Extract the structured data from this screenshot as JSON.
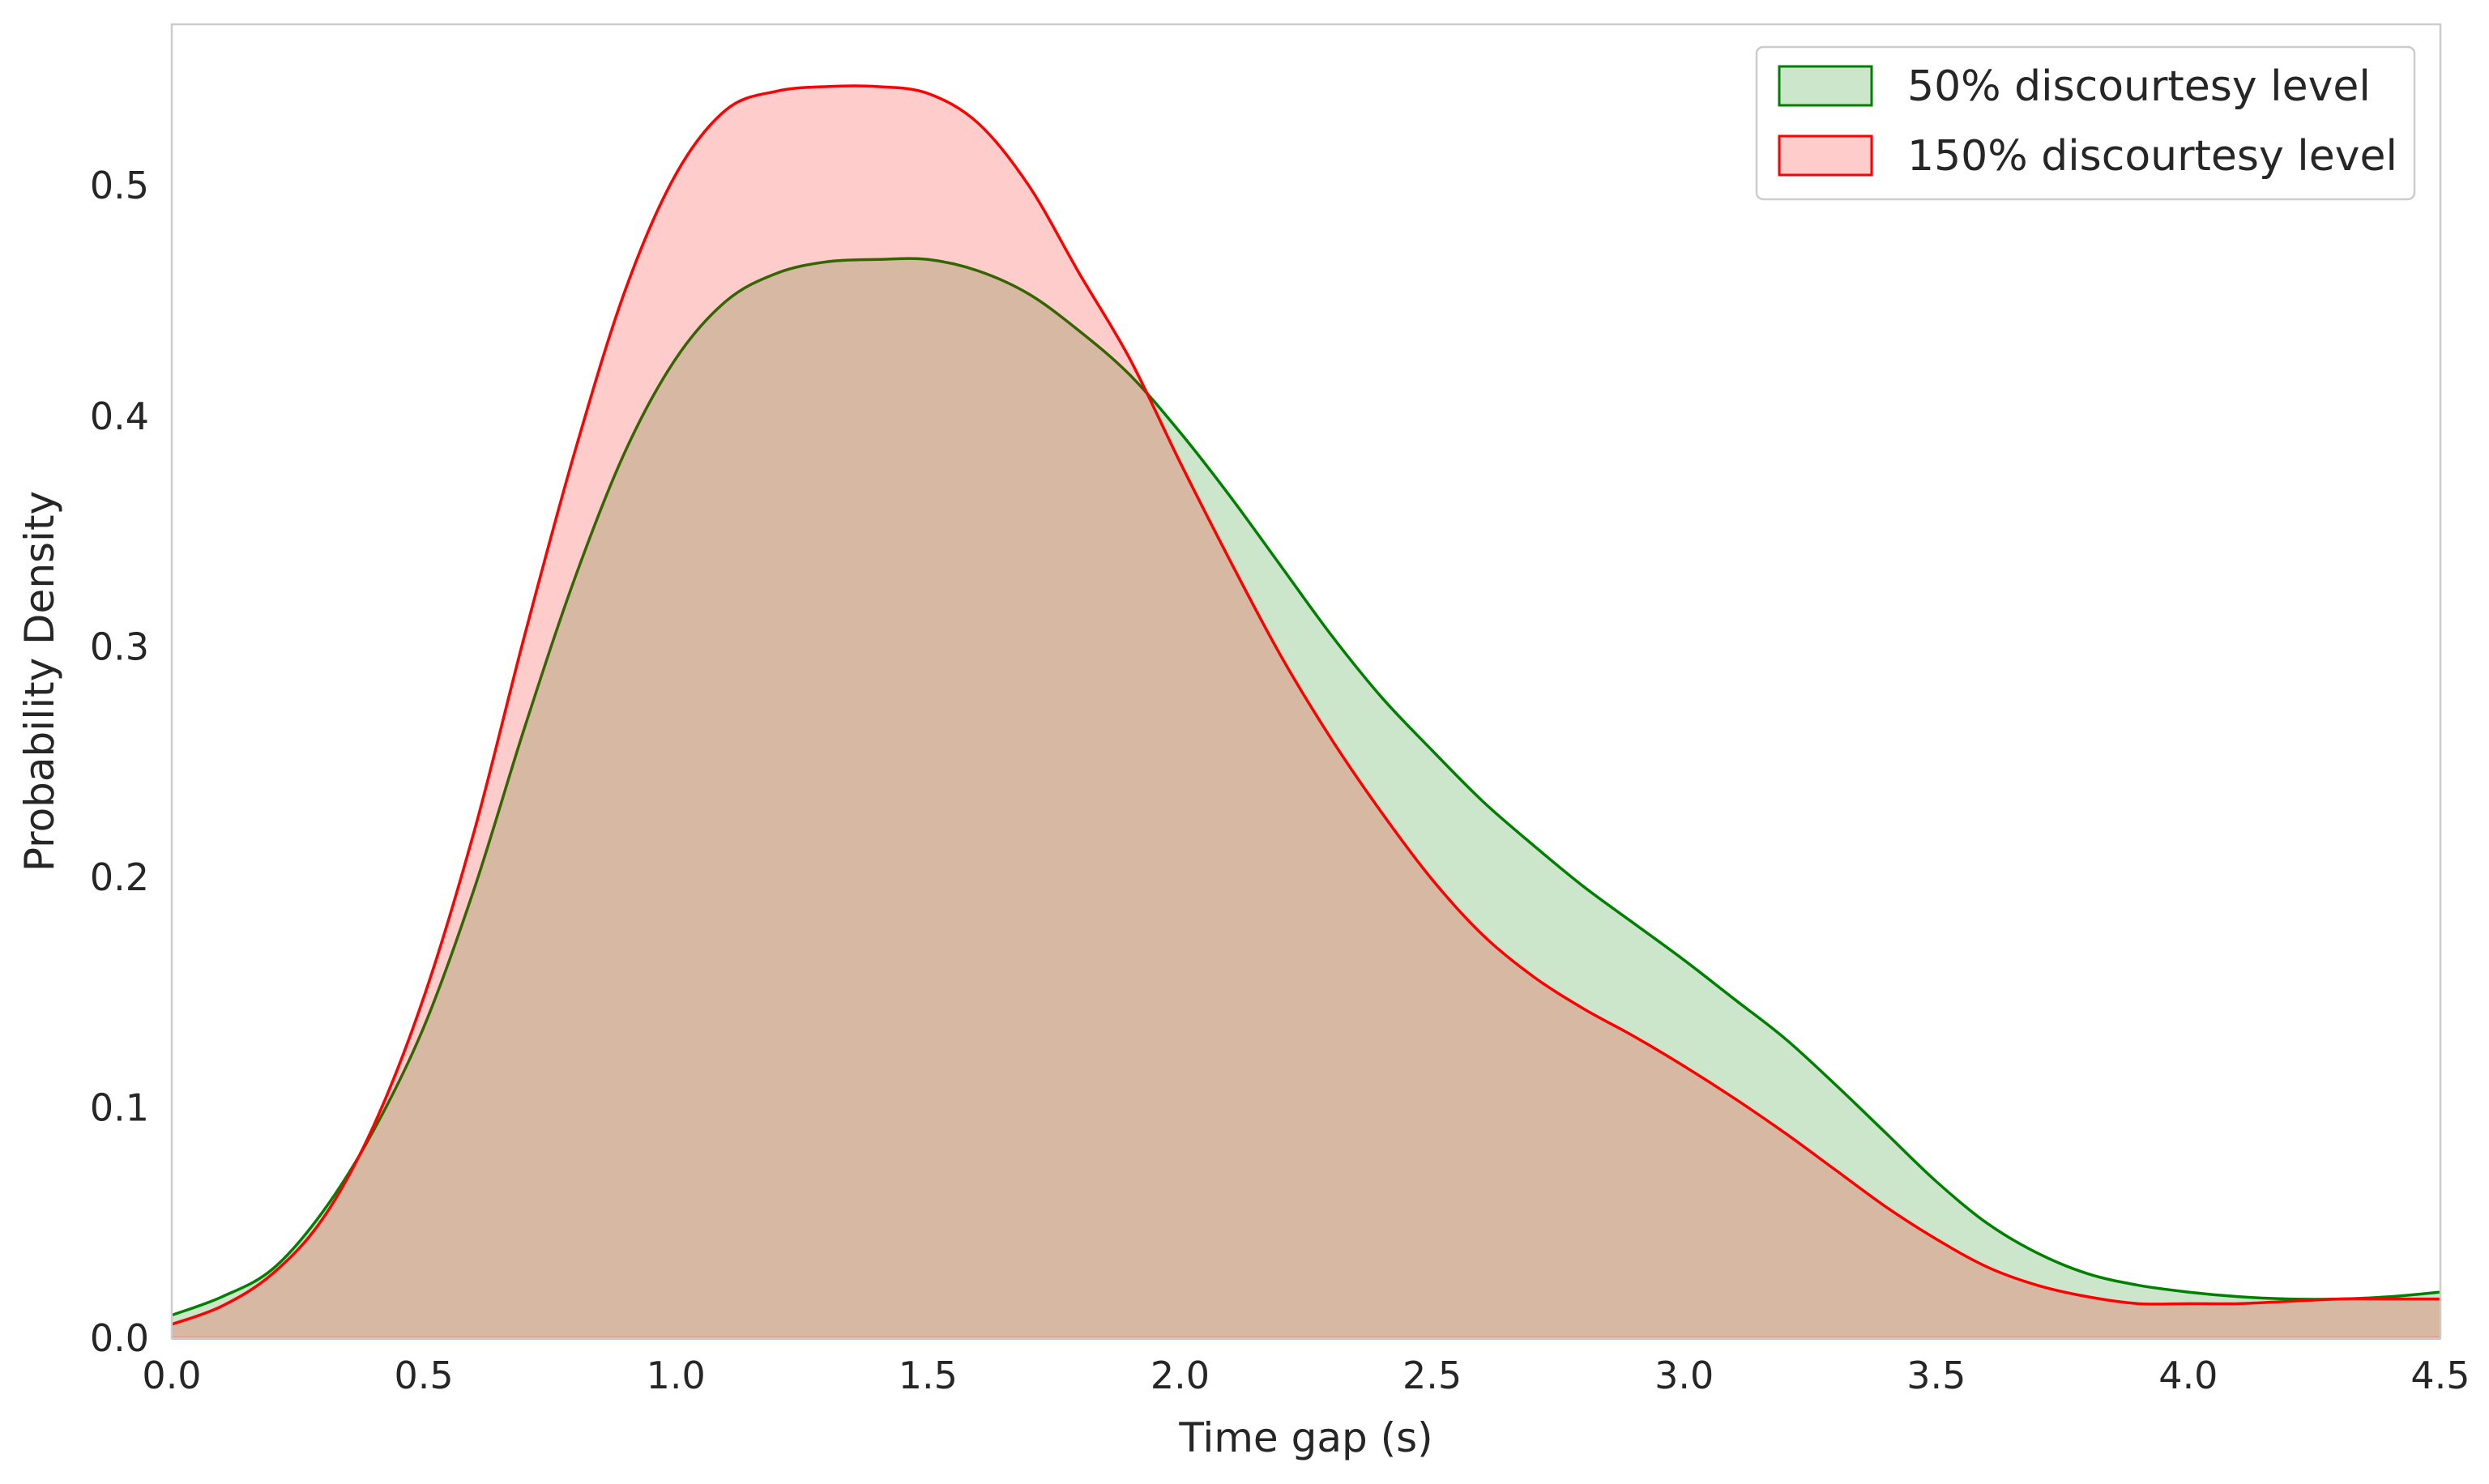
{
  "chart_data": {
    "type": "area",
    "title": "",
    "xlabel": "Time gap (s)",
    "ylabel": "Probability Density",
    "xlim": [
      0.0,
      4.5
    ],
    "ylim": [
      0.0,
      0.57
    ],
    "xticks": [
      "0.0",
      "0.5",
      "1.0",
      "1.5",
      "2.0",
      "2.5",
      "3.0",
      "3.5",
      "4.0",
      "4.5"
    ],
    "yticks": [
      "0.0",
      "0.1",
      "0.2",
      "0.3",
      "0.4",
      "0.5"
    ],
    "grid": false,
    "legend_position": "top-right",
    "x": [
      0.0,
      0.1,
      0.2,
      0.3,
      0.4,
      0.5,
      0.6,
      0.7,
      0.8,
      0.9,
      1.0,
      1.1,
      1.2,
      1.3,
      1.4,
      1.5,
      1.6,
      1.7,
      1.8,
      1.9,
      2.0,
      2.1,
      2.2,
      2.3,
      2.4,
      2.5,
      2.6,
      2.7,
      2.8,
      2.9,
      3.0,
      3.1,
      3.2,
      3.3,
      3.4,
      3.5,
      3.6,
      3.7,
      3.8,
      3.9,
      4.0,
      4.1,
      4.2,
      4.3,
      4.4,
      4.5
    ],
    "series": [
      {
        "name": "50% discourtesy level",
        "line_color": "#008000",
        "fill_color": "#008000",
        "fill_opacity": 0.2,
        "values": [
          0.01,
          0.018,
          0.03,
          0.055,
          0.09,
          0.135,
          0.195,
          0.265,
          0.33,
          0.385,
          0.425,
          0.45,
          0.462,
          0.467,
          0.468,
          0.468,
          0.463,
          0.453,
          0.437,
          0.418,
          0.393,
          0.365,
          0.335,
          0.305,
          0.278,
          0.255,
          0.233,
          0.214,
          0.196,
          0.18,
          0.164,
          0.147,
          0.13,
          0.11,
          0.089,
          0.068,
          0.05,
          0.037,
          0.028,
          0.023,
          0.02,
          0.018,
          0.017,
          0.017,
          0.018,
          0.02
        ]
      },
      {
        "name": "150% discourtesy level",
        "line_color": "#ff0000",
        "fill_color": "#ff0000",
        "fill_opacity": 0.2,
        "values": [
          0.006,
          0.014,
          0.028,
          0.052,
          0.092,
          0.148,
          0.22,
          0.305,
          0.385,
          0.455,
          0.505,
          0.533,
          0.541,
          0.543,
          0.543,
          0.54,
          0.527,
          0.5,
          0.462,
          0.425,
          0.38,
          0.337,
          0.296,
          0.26,
          0.228,
          0.199,
          0.175,
          0.157,
          0.143,
          0.131,
          0.118,
          0.104,
          0.089,
          0.073,
          0.057,
          0.043,
          0.031,
          0.023,
          0.018,
          0.015,
          0.015,
          0.015,
          0.016,
          0.017,
          0.017,
          0.017
        ]
      }
    ]
  }
}
